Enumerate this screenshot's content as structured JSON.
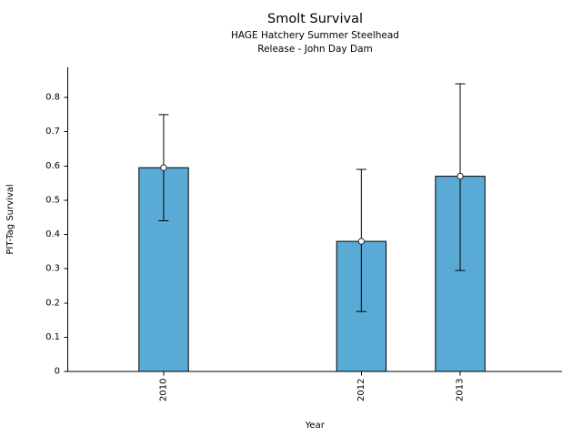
{
  "figure": {
    "background": "#ffffff",
    "text_color": "#000000"
  },
  "chart_data": {
    "type": "bar",
    "title": "Smolt Survival",
    "subtitle": [
      "HAGE Hatchery Summer Steelhead",
      "Release - John Day Dam"
    ],
    "xlabel": "Year",
    "ylabel": "PIT-Tag Survival",
    "categories": [
      "2010",
      "2012",
      "2013"
    ],
    "x": [
      2010,
      2012,
      2013
    ],
    "values": [
      0.595,
      0.38,
      0.57
    ],
    "error_low": [
      0.44,
      0.175,
      0.295
    ],
    "error_high": [
      0.75,
      0.59,
      0.84
    ],
    "bar_width_years": 0.5,
    "bar_color": "#5AAAD6",
    "bar_edge_color": "#000000",
    "error_bar_color": "#000000",
    "marker": "open-circle",
    "marker_fill": "#ffffff",
    "xlim": [
      2009.03,
      2014.03
    ],
    "ylim": [
      0,
      0.888
    ],
    "yticks": [
      0,
      0.1,
      0.2,
      0.3,
      0.4,
      0.5,
      0.6,
      0.7,
      0.8
    ],
    "ytick_labels": [
      "0",
      "0.1",
      "0.2",
      "0.3",
      "0.4",
      "0.5",
      "0.6",
      "0.7",
      "0.8"
    ],
    "xtick_rotation": 90,
    "grid": false,
    "legend": null
  }
}
